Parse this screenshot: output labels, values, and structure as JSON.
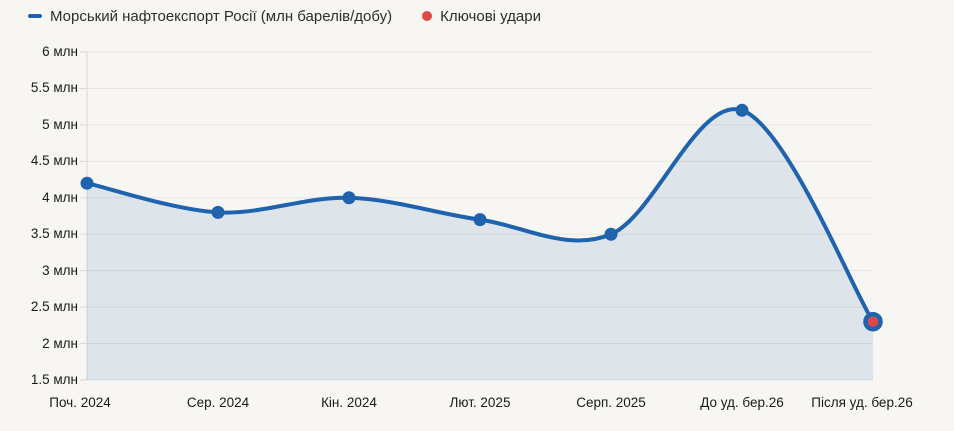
{
  "legend": {
    "items": [
      {
        "label": "Морський нафтоекспорт Росії (млн барелів/добу)",
        "marker": "line-dash-icon",
        "color": "#1f62ad"
      },
      {
        "label": "Ключові удари",
        "marker": "dot-icon",
        "color": "#e04747"
      }
    ]
  },
  "chart_data": {
    "type": "line",
    "subtype": "spline-area",
    "title": "Морський нафтоекспорт Росії (млн барелів/добу)",
    "categories": [
      "Поч. 2024",
      "Сер. 2024",
      "Кін. 2024",
      "Лют. 2025",
      "Серп. 2025",
      "До уд. бер.26",
      "Після уд. бер.26"
    ],
    "series": [
      {
        "name": "Морський нафтоекспорт Росії (млн барелів/добу)",
        "values": [
          4.2,
          3.8,
          4.0,
          3.7,
          3.5,
          5.2,
          2.3
        ],
        "color": "#1f62ad",
        "area_fill": "rgba(31,98,173,0.12)"
      }
    ],
    "key_strikes": [
      {
        "category": "Після уд. бер.26",
        "value": 2.3,
        "color": "#e04747"
      }
    ],
    "ylim": [
      1.5,
      6
    ],
    "ytick_step": 0.5,
    "yticks": [
      {
        "value": 6,
        "label": "6 млн"
      },
      {
        "value": 5.5,
        "label": "5.5 млн"
      },
      {
        "value": 5,
        "label": "5 млн"
      },
      {
        "value": 4.5,
        "label": "4.5 млн"
      },
      {
        "value": 4,
        "label": "4 млн"
      },
      {
        "value": 3.5,
        "label": "3.5 млн"
      },
      {
        "value": 3,
        "label": "3 млн"
      },
      {
        "value": 2.5,
        "label": "2.5 млн"
      },
      {
        "value": 2,
        "label": "2 млн"
      },
      {
        "value": 1.5,
        "label": "1.5 млн"
      }
    ],
    "grid": true,
    "legend_position": "top-left",
    "colors": {
      "background": "#f7f6f3",
      "gridline": "#e8e6e2",
      "axis": "#d9d7d3",
      "line": "#1f62ad",
      "point": "#1f62ad",
      "key_strike": "#e04747",
      "text": "#1a1a1a"
    }
  }
}
